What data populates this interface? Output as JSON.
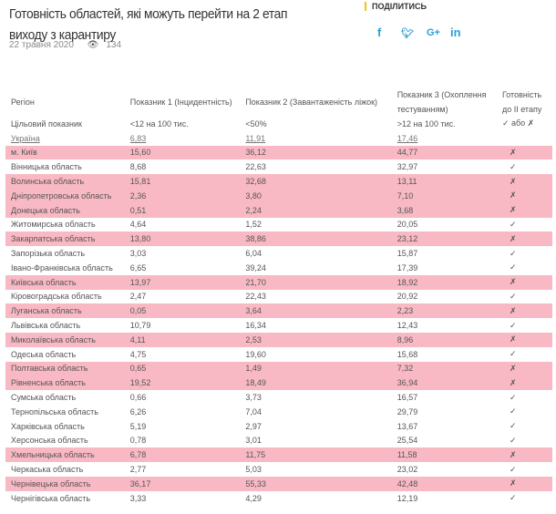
{
  "article": {
    "title": "Готовність областей, які можуть перейти на 2 етап виходу з карантиру",
    "date": "22 травня 2020",
    "views": "134"
  },
  "share": {
    "label": "ПОДІЛИТИСЬ",
    "icons": [
      {
        "name": "facebook-icon",
        "glyph": "f"
      },
      {
        "name": "twitter-icon",
        "glyph": "🐦︎"
      },
      {
        "name": "google-plus-icon",
        "glyph": "G+"
      },
      {
        "name": "linkedin-icon",
        "glyph": "in"
      }
    ]
  },
  "colors": {
    "highlight": "#f9b9c4",
    "social": "#2a9fd6",
    "share_bar": "#f0c419"
  },
  "table": {
    "headers": [
      "Регіон",
      "Показник 1 (Інцидентність)",
      "Показник 2 (Завантаженість ліжок)",
      "Показник 3 (Охоплення тестуванням)",
      "Готовність до ІІ етапу"
    ],
    "target": [
      "Цільовий показник",
      "<12 на 100 тис.",
      "<50%",
      ">12 на 100 тис.",
      "✓ або ✗"
    ],
    "ukraine": [
      "Україна",
      "6,83",
      "11,91",
      "17,46"
    ],
    "rows": [
      [
        "м. Київ",
        "15,60",
        "36,12",
        "44,77",
        "✗"
      ],
      [
        "Вінницька область",
        "8,68",
        "22,63",
        "32,97",
        "✓"
      ],
      [
        "Волинська область",
        "15,81",
        "32,68",
        "13,11",
        "✗"
      ],
      [
        "Дніпропетровська область",
        "2,36",
        "3,80",
        "7,10",
        "✗"
      ],
      [
        "Донецька область",
        "0,51",
        "2,24",
        "3,68",
        "✗"
      ],
      [
        "Житомирська область",
        "4,64",
        "1,52",
        "20,05",
        "✓"
      ],
      [
        "Закарпатська область",
        "13,80",
        "38,86",
        "23,12",
        "✗"
      ],
      [
        "Запорізька область",
        "3,03",
        "6,04",
        "15,87",
        "✓"
      ],
      [
        "Івано-Франківська область",
        "6,65",
        "39,24",
        "17,39",
        "✓"
      ],
      [
        "Київська область",
        "13,97",
        "21,70",
        "18,92",
        "✗"
      ],
      [
        "Кіровоградська область",
        "2,47",
        "22,43",
        "20,92",
        "✓"
      ],
      [
        "Луганська область",
        "0,05",
        "3,64",
        "2,23",
        "✗"
      ],
      [
        "Львівська область",
        "10,79",
        "16,34",
        "12,43",
        "✓"
      ],
      [
        "Миколаївська область",
        "4,11",
        "2,53",
        "8,96",
        "✗"
      ],
      [
        "Одеська область",
        "4,75",
        "19,60",
        "15,68",
        "✓"
      ],
      [
        "Полтавська область",
        "0,65",
        "1,49",
        "7,32",
        "✗"
      ],
      [
        "Рівненська область",
        "19,52",
        "18,49",
        "36,94",
        "✗"
      ],
      [
        "Сумська область",
        "0,66",
        "3,73",
        "16,57",
        "✓"
      ],
      [
        "Тернопільська область",
        "6,26",
        "7,04",
        "29,79",
        "✓"
      ],
      [
        "Харківська область",
        "5,19",
        "2,97",
        "13,67",
        "✓"
      ],
      [
        "Херсонська область",
        "0,78",
        "3,01",
        "25,54",
        "✓"
      ],
      [
        "Хмельницька область",
        "6,78",
        "11,75",
        "11,58",
        "✗"
      ],
      [
        "Черкаська область",
        "2,77",
        "5,03",
        "23,02",
        "✓"
      ],
      [
        "Чернівецька область",
        "36,17",
        "55,33",
        "42,48",
        "✗"
      ],
      [
        "Чернігівська область",
        "3,33",
        "4,29",
        "12,19",
        "✓"
      ]
    ]
  }
}
